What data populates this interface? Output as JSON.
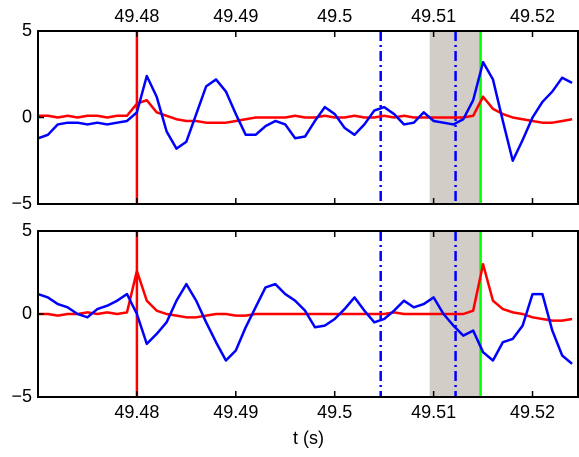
{
  "chart_data": [
    {
      "type": "line",
      "xaxis_position": "top",
      "xlim": [
        49.47,
        49.5247
      ],
      "xticks": [
        49.48,
        49.49,
        49.5,
        49.51,
        49.52
      ],
      "ylim": [
        -5,
        5
      ],
      "yticks": [
        {
          "value": -5,
          "label": "−5"
        },
        0,
        5
      ],
      "span": {
        "x": [
          49.5096,
          49.51475
        ],
        "color": "#d2cdc6"
      },
      "vlines": [
        {
          "x": 49.48,
          "color": "#ff0000",
          "style": "solid"
        },
        {
          "x": 49.50465,
          "color": "#0000ff",
          "style": "dashdot"
        },
        {
          "x": 49.51222,
          "color": "#0000ff",
          "style": "dashdot"
        },
        {
          "x": 49.51475,
          "color": "#00ff00",
          "style": "solid"
        }
      ],
      "x": [
        49.47,
        49.471,
        49.472,
        49.473,
        49.474,
        49.475,
        49.476,
        49.477,
        49.478,
        49.479,
        49.48,
        49.481,
        49.482,
        49.483,
        49.484,
        49.485,
        49.486,
        49.487,
        49.488,
        49.489,
        49.49,
        49.491,
        49.492,
        49.493,
        49.494,
        49.495,
        49.496,
        49.497,
        49.498,
        49.499,
        49.5,
        49.501,
        49.502,
        49.503,
        49.504,
        49.505,
        49.506,
        49.507,
        49.508,
        49.509,
        49.51,
        49.511,
        49.512,
        49.513,
        49.514,
        49.515,
        49.516,
        49.517,
        49.518,
        49.519,
        49.52,
        49.521,
        49.522,
        49.523,
        49.524
      ],
      "series": [
        {
          "color": "#ff0000",
          "values": [
            0.1,
            0.1,
            0.0,
            0.1,
            0.0,
            0.1,
            0.1,
            0.0,
            0.1,
            0.1,
            0.8,
            1.0,
            0.3,
            0.1,
            -0.1,
            -0.2,
            -0.2,
            -0.3,
            -0.3,
            -0.3,
            -0.2,
            -0.1,
            0.0,
            0.0,
            0.0,
            0.0,
            0.1,
            0.0,
            0.0,
            0.1,
            0.0,
            0.0,
            0.1,
            0.0,
            0.0,
            0.1,
            0.0,
            0.1,
            0.0,
            0.0,
            0.0,
            0.0,
            0.0,
            0.0,
            0.1,
            1.2,
            0.5,
            0.2,
            0.0,
            -0.1,
            -0.2,
            -0.3,
            -0.3,
            -0.2,
            -0.1
          ]
        },
        {
          "color": "#0000ff",
          "values": [
            -1.2,
            -1.0,
            -0.4,
            -0.3,
            -0.3,
            -0.4,
            -0.3,
            -0.4,
            -0.3,
            -0.2,
            0.3,
            2.4,
            1.2,
            -0.8,
            -1.8,
            -1.4,
            0.2,
            1.8,
            2.2,
            1.5,
            0.2,
            -1.0,
            -1.0,
            -0.5,
            -0.2,
            -0.4,
            -1.2,
            -1.1,
            -0.2,
            0.6,
            0.2,
            -0.6,
            -1.0,
            -0.4,
            0.4,
            0.6,
            0.2,
            -0.4,
            -0.3,
            0.3,
            -0.2,
            -0.3,
            -0.4,
            -0.1,
            1.0,
            3.2,
            2.2,
            -0.2,
            -2.5,
            -1.3,
            0.0,
            0.9,
            1.5,
            2.3,
            2.0
          ]
        }
      ]
    },
    {
      "type": "line",
      "xaxis_position": "bottom",
      "xlabel": "t (s)",
      "xlim": [
        49.47,
        49.5247
      ],
      "xticks": [
        49.48,
        49.49,
        49.5,
        49.51,
        49.52
      ],
      "ylim": [
        -5,
        5
      ],
      "yticks": [
        {
          "value": -5,
          "label": "−5"
        },
        0,
        5
      ],
      "span": {
        "x": [
          49.5096,
          49.51475
        ],
        "color": "#d2cdc6"
      },
      "vlines": [
        {
          "x": 49.48,
          "color": "#ff0000",
          "style": "solid"
        },
        {
          "x": 49.50465,
          "color": "#0000ff",
          "style": "dashdot"
        },
        {
          "x": 49.51222,
          "color": "#0000ff",
          "style": "dashdot"
        },
        {
          "x": 49.51475,
          "color": "#00ff00",
          "style": "solid"
        }
      ],
      "x": [
        49.47,
        49.471,
        49.472,
        49.473,
        49.474,
        49.475,
        49.476,
        49.477,
        49.478,
        49.479,
        49.48,
        49.481,
        49.482,
        49.483,
        49.484,
        49.485,
        49.486,
        49.487,
        49.488,
        49.489,
        49.49,
        49.491,
        49.492,
        49.493,
        49.494,
        49.495,
        49.496,
        49.497,
        49.498,
        49.499,
        49.5,
        49.501,
        49.502,
        49.503,
        49.504,
        49.505,
        49.506,
        49.507,
        49.508,
        49.509,
        49.51,
        49.511,
        49.512,
        49.513,
        49.514,
        49.515,
        49.516,
        49.517,
        49.518,
        49.519,
        49.52,
        49.521,
        49.522,
        49.523,
        49.524
      ],
      "series": [
        {
          "color": "#ff0000",
          "values": [
            0.0,
            0.0,
            -0.1,
            0.0,
            0.0,
            0.1,
            0.0,
            0.1,
            0.0,
            0.1,
            2.6,
            0.8,
            0.2,
            0.0,
            -0.1,
            -0.2,
            -0.2,
            -0.1,
            0.0,
            0.0,
            -0.1,
            -0.1,
            0.0,
            0.0,
            0.0,
            0.0,
            0.0,
            0.0,
            0.0,
            0.0,
            0.0,
            0.0,
            0.0,
            0.0,
            0.0,
            0.0,
            0.1,
            0.0,
            0.0,
            0.0,
            0.0,
            0.0,
            0.0,
            0.0,
            0.2,
            3.0,
            0.8,
            0.3,
            0.1,
            0.0,
            -0.2,
            -0.3,
            -0.4,
            -0.4,
            -0.3
          ]
        },
        {
          "color": "#0000ff",
          "values": [
            1.2,
            1.0,
            0.6,
            0.4,
            0.0,
            -0.2,
            0.3,
            0.5,
            0.8,
            1.2,
            0.0,
            -1.8,
            -1.2,
            -0.5,
            0.8,
            1.8,
            0.8,
            -0.5,
            -1.7,
            -2.8,
            -2.2,
            -0.8,
            0.4,
            1.6,
            1.8,
            1.2,
            0.8,
            0.2,
            -0.8,
            -0.7,
            -0.3,
            0.3,
            1.0,
            0.2,
            -0.5,
            -0.3,
            0.2,
            0.8,
            0.4,
            0.6,
            1.0,
            0.0,
            -0.7,
            -1.3,
            -1.0,
            -2.3,
            -2.8,
            -1.7,
            -1.5,
            -0.7,
            1.2,
            1.2,
            -1.0,
            -2.5,
            -3.0
          ]
        }
      ]
    }
  ]
}
